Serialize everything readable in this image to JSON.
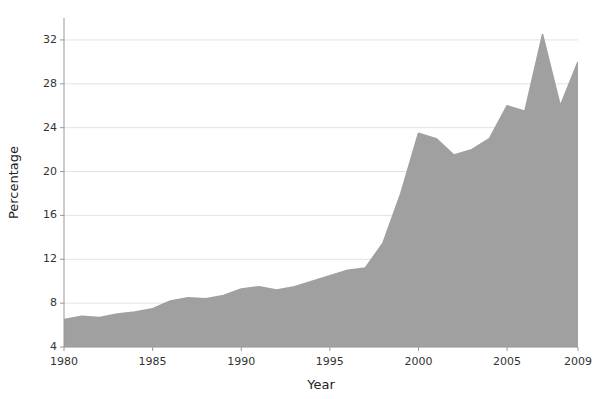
{
  "chart_data": {
    "type": "area",
    "x": [
      1980,
      1981,
      1982,
      1983,
      1984,
      1985,
      1986,
      1987,
      1988,
      1989,
      1990,
      1991,
      1992,
      1993,
      1994,
      1995,
      1996,
      1997,
      1998,
      1999,
      2000,
      2001,
      2002,
      2003,
      2004,
      2005,
      2006,
      2007,
      2008,
      2009
    ],
    "values": [
      6.5,
      6.8,
      6.7,
      7.0,
      7.2,
      7.5,
      8.2,
      8.5,
      8.4,
      8.7,
      9.3,
      9.5,
      9.2,
      9.5,
      10.0,
      10.5,
      11.0,
      11.2,
      13.5,
      18.0,
      23.5,
      23.0,
      21.5,
      22.0,
      23.0,
      26.0,
      25.5,
      32.5,
      26.0,
      30.0
    ],
    "color": "#a0a0a0",
    "xlabel": "Year",
    "ylabel": "Percentage",
    "xlim": [
      1980,
      2009
    ],
    "ylim": [
      4,
      34
    ],
    "xticks": [
      1980,
      1985,
      1990,
      1995,
      2000,
      2005,
      2009
    ],
    "yticks": [
      4,
      8,
      12,
      16,
      20,
      24,
      28,
      32
    ],
    "grid": true
  }
}
